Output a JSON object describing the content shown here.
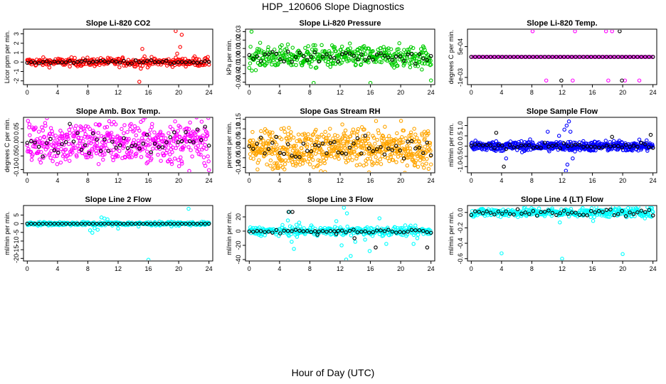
{
  "title": "HDP_120606  Slope Diagnostics",
  "xlabel": "Hour of Day (UTC)",
  "colors": {
    "reference": "#000000",
    "frame": "#000000"
  },
  "chart_data": [
    {
      "type": "scatter",
      "title": "Slope Li-820 CO2",
      "ylabel": "Licor ppm per min.",
      "color": "#ff0000",
      "xlim": [
        -0.5,
        24.5
      ],
      "ylim": [
        -2.4,
        3.5
      ],
      "yticks": [
        -2,
        -1,
        0,
        1,
        2,
        3
      ],
      "yticklabels": [
        "-2",
        "-1",
        "0",
        "1",
        "2",
        "3"
      ],
      "xticks": [
        0,
        4,
        8,
        12,
        16,
        20,
        24
      ],
      "series": [
        {
          "name": "",
          "color": "#ff0000",
          "noise": 0.22,
          "n": 330,
          "points": [
            [
              15.2,
              1.4
            ],
            [
              15.5,
              0.6
            ],
            [
              15.0,
              -0.7
            ],
            [
              14.8,
              -2.1
            ],
            [
              19.6,
              3.3
            ],
            [
              20.4,
              2.9
            ],
            [
              20.2,
              1.6
            ],
            [
              19.8,
              0.9
            ],
            [
              12.6,
              0.5
            ],
            [
              22.1,
              0.6
            ]
          ]
        },
        {
          "name": "",
          "color": "#000000",
          "noise": 0.09,
          "n": 48,
          "points": []
        }
      ]
    },
    {
      "type": "scatter",
      "title": "Slope Li-820 Pressure",
      "ylabel": "kPa per min.",
      "color": "#00cc00",
      "xlim": [
        -0.5,
        24.5
      ],
      "ylim": [
        -0.033,
        0.033
      ],
      "yticks": [
        -0.03,
        -0.02,
        -0.01,
        0.0,
        0.01,
        0.02,
        0.03
      ],
      "yticklabels": [
        "-0.03",
        "-0.02",
        "-0.01",
        "0.00",
        "0.01",
        "0.02",
        "0.03"
      ],
      "xticks": [
        0,
        4,
        8,
        12,
        16,
        20,
        24
      ],
      "series": [
        {
          "name": "",
          "color": "#00cc00",
          "noise": 0.0065,
          "n": 420,
          "points": [
            [
              0.3,
              0.03
            ],
            [
              8.5,
              -0.031
            ],
            [
              16.0,
              -0.031
            ],
            [
              24.0,
              -0.028
            ]
          ]
        },
        {
          "name": "",
          "color": "#000000",
          "noise": 0.004,
          "n": 48,
          "points": []
        }
      ]
    },
    {
      "type": "scatter",
      "title": "Slope Li-820 Temp.",
      "ylabel": "degrees C per min.",
      "color": "#ff00ff",
      "xlim": [
        -0.5,
        24.5
      ],
      "ylim": [
        -0.00135,
        0.00135
      ],
      "yticks": [
        -0.001,
        0.0005
      ],
      "yticklabels": [
        "-1e-03",
        "5e-04"
      ],
      "xticks": [
        0,
        4,
        8,
        12,
        16,
        20,
        24
      ],
      "series": [
        {
          "name": "",
          "color": "#ff00ff",
          "noise": 0.0,
          "n": 100,
          "points": [
            [
              8.1,
              0.00125
            ],
            [
              13.7,
              0.00125
            ],
            [
              17.8,
              0.00125
            ],
            [
              18.6,
              0.00125
            ],
            [
              9.9,
              -0.00115
            ],
            [
              13.4,
              -0.00115
            ],
            [
              18.1,
              -0.00115
            ],
            [
              20.3,
              -0.00115
            ],
            [
              22.2,
              -0.00115
            ]
          ]
        },
        {
          "name": "",
          "color": "#000000",
          "noise": 0.0,
          "n": 48,
          "points": [
            [
              19.6,
              0.00125
            ],
            [
              11.9,
              -0.00115
            ],
            [
              19.9,
              -0.00115
            ]
          ]
        }
      ]
    },
    {
      "type": "scatter",
      "title": "Slope Amb. Box Temp.",
      "ylabel": "degrees C per min.",
      "color": "#ff00ff",
      "xlim": [
        -0.5,
        24.5
      ],
      "ylim": [
        -0.112,
        0.092
      ],
      "yticks": [
        -0.1,
        -0.05,
        0.0,
        0.05
      ],
      "yticklabels": [
        "-0.10",
        "-0.05",
        "0.00",
        "0.05"
      ],
      "xticks": [
        0,
        4,
        8,
        12,
        16,
        20,
        24
      ],
      "series": [
        {
          "name": "",
          "color": "#ff00ff",
          "noise": 0.04,
          "n": 500,
          "points": []
        },
        {
          "name": "",
          "color": "#000000",
          "noise": 0.028,
          "n": 48,
          "points": []
        }
      ]
    },
    {
      "type": "scatter",
      "title": "Slope Gas Stream RH",
      "ylabel": "percent per min.",
      "color": "#ffa500",
      "xlim": [
        -0.5,
        24.5
      ],
      "ylim": [
        -0.128,
        0.16
      ],
      "yticks": [
        -0.1,
        -0.05,
        0.0,
        0.05,
        0.1,
        0.15
      ],
      "yticklabels": [
        "-0.10",
        "-0.05",
        "0.00",
        "0.05",
        "0.10",
        "0.15"
      ],
      "xticks": [
        0,
        4,
        8,
        12,
        16,
        20,
        24
      ],
      "series": [
        {
          "name": "",
          "color": "#ffa500",
          "noise": 0.05,
          "n": 620,
          "points": []
        },
        {
          "name": "",
          "color": "#000000",
          "noise": 0.035,
          "n": 48,
          "points": []
        }
      ]
    },
    {
      "type": "scatter",
      "title": "Slope Sample Flow",
      "ylabel": "ml/min per min.",
      "color": "#0000ff",
      "xlim": [
        -0.5,
        24.5
      ],
      "ylim": [
        -1.3,
        1.4
      ],
      "yticks": [
        -1.0,
        -0.5,
        0.0,
        0.5,
        1.0
      ],
      "yticklabels": [
        "-1.0",
        "-0.5",
        "0.0",
        "0.5",
        "1.0"
      ],
      "xticks": [
        0,
        4,
        8,
        12,
        16,
        20,
        24
      ],
      "series": [
        {
          "name": "",
          "color": "#0000ff",
          "noise": 0.12,
          "n": 520,
          "points": [
            [
              12.9,
              1.2
            ],
            [
              12.6,
              1.0
            ],
            [
              12.3,
              0.8
            ],
            [
              13.1,
              0.7
            ],
            [
              12.7,
              -0.9
            ],
            [
              12.5,
              -1.2
            ],
            [
              13.4,
              -0.6
            ],
            [
              4.6,
              -0.6
            ],
            [
              10.1,
              0.7
            ],
            [
              11.6,
              0.5
            ]
          ]
        },
        {
          "name": "",
          "color": "#000000",
          "noise": 0.08,
          "n": 48,
          "points": [
            [
              3.3,
              0.65
            ],
            [
              4.3,
              -1.0
            ],
            [
              23.7,
              0.55
            ],
            [
              18.6,
              0.45
            ]
          ]
        }
      ]
    },
    {
      "type": "scatter",
      "title": "Slope Line 2 Flow",
      "ylabel": "ml/min per min.",
      "color": "#00ffff",
      "xlim": [
        -0.5,
        24.5
      ],
      "ylim": [
        -21.5,
        10.5
      ],
      "yticks": [
        -20,
        -15,
        -10,
        -5,
        0,
        5
      ],
      "yticklabels": [
        "-20",
        "-15",
        "-10",
        "-5",
        "0",
        "5"
      ],
      "xticks": [
        0,
        4,
        8,
        12,
        16,
        20,
        24
      ],
      "series": [
        {
          "name": "",
          "color": "#00ffff",
          "noise": 0.5,
          "n": 360,
          "points": [
            [
              8.6,
              -5.2
            ],
            [
              8.3,
              -3.8
            ],
            [
              8.9,
              -2.6
            ],
            [
              9.3,
              -3.5
            ],
            [
              9.8,
              3.6
            ],
            [
              10.2,
              3.0
            ],
            [
              10.6,
              2.5
            ],
            [
              12.0,
              -2.8
            ],
            [
              14.7,
              -1.6
            ],
            [
              16.0,
              -20.8
            ],
            [
              21.3,
              8.6
            ]
          ]
        },
        {
          "name": "",
          "color": "#000000",
          "noise": 0.0,
          "n": 48,
          "points": []
        }
      ]
    },
    {
      "type": "scatter",
      "title": "Slope Line 3 Flow",
      "ylabel": "ml/min per min.",
      "color": "#00ffff",
      "xlim": [
        -0.5,
        24.5
      ],
      "ylim": [
        -42,
        36
      ],
      "yticks": [
        -40,
        -20,
        0,
        20
      ],
      "yticklabels": [
        "-40",
        "-20",
        "0",
        "20"
      ],
      "xticks": [
        0,
        4,
        8,
        12,
        16,
        20,
        24
      ],
      "series": [
        {
          "name": "",
          "color": "#00ffff",
          "noise": 3.0,
          "n": 340,
          "points": [
            [
              5.3,
              27
            ],
            [
              5.1,
              15
            ],
            [
              5.6,
              -15
            ],
            [
              5.9,
              -25
            ],
            [
              6.3,
              -8
            ],
            [
              6.6,
              12
            ],
            [
              8.2,
              8
            ],
            [
              11.5,
              14
            ],
            [
              12.2,
              -20
            ],
            [
              12.5,
              33
            ],
            [
              12.9,
              25
            ],
            [
              13.4,
              -35
            ],
            [
              12.8,
              -40
            ],
            [
              14.0,
              -15
            ],
            [
              15.3,
              -12
            ],
            [
              15.9,
              -28
            ],
            [
              17.2,
              18
            ],
            [
              18.1,
              -18
            ],
            [
              21.7,
              -18
            ],
            [
              22.2,
              -10
            ],
            [
              23.6,
              -4
            ]
          ]
        },
        {
          "name": "",
          "color": "#000000",
          "noise": 1.2,
          "n": 48,
          "points": [
            [
              5.2,
              27
            ],
            [
              5.7,
              27
            ],
            [
              9.0,
              -5
            ],
            [
              11.5,
              -4
            ],
            [
              13.9,
              -10
            ],
            [
              16.7,
              -23
            ],
            [
              23.5,
              -23
            ]
          ]
        }
      ]
    },
    {
      "type": "scatter",
      "title": "Slope Line 4 (LT) Flow",
      "ylabel": "ml/min per min.",
      "color": "#00ffff",
      "xlim": [
        -0.5,
        24.5
      ],
      "ylim": [
        -0.63,
        0.09
      ],
      "yticks": [
        -0.6,
        -0.4,
        -0.2,
        0.0
      ],
      "yticklabels": [
        "-0.6",
        "-0.4",
        "-0.2",
        "0.0"
      ],
      "xticks": [
        0,
        4,
        8,
        12,
        16,
        20,
        24
      ],
      "series": [
        {
          "name": "",
          "color": "#00ffff",
          "noise": 0.03,
          "n": 360,
          "points": [
            [
              4.0,
              -0.53
            ],
            [
              12.0,
              -0.6
            ],
            [
              20.0,
              -0.54
            ],
            [
              11.7,
              -0.13
            ],
            [
              16.1,
              -0.11
            ]
          ]
        },
        {
          "name": "",
          "color": "#000000",
          "noise": 0.025,
          "n": 48,
          "points": []
        }
      ]
    }
  ]
}
